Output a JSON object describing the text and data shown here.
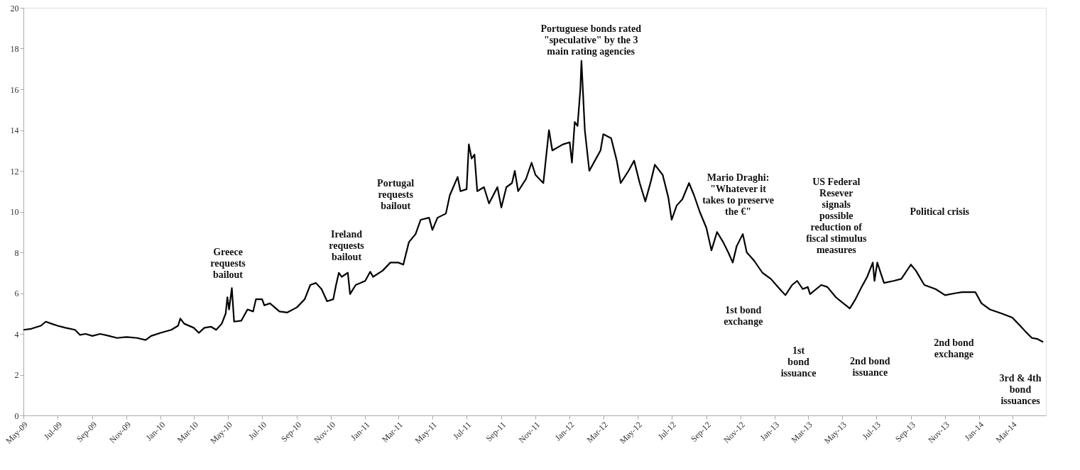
{
  "chart_data": {
    "type": "line",
    "x": [
      "2009-05-01",
      "2009-05-15",
      "2009-06-01",
      "2009-06-10",
      "2009-06-20",
      "2009-07-01",
      "2009-07-15",
      "2009-08-01",
      "2009-08-10",
      "2009-08-20",
      "2009-09-01",
      "2009-09-15",
      "2009-10-01",
      "2009-10-15",
      "2009-11-01",
      "2009-11-20",
      "2009-12-05",
      "2009-12-15",
      "2010-01-01",
      "2010-01-20",
      "2010-02-01",
      "2010-02-05",
      "2010-02-12",
      "2010-03-01",
      "2010-03-10",
      "2010-03-20",
      "2010-04-01",
      "2010-04-10",
      "2010-04-20",
      "2010-04-27",
      "2010-04-30",
      "2010-05-03",
      "2010-05-08",
      "2010-05-12",
      "2010-05-25",
      "2010-06-05",
      "2010-06-15",
      "2010-06-20",
      "2010-07-01",
      "2010-07-05",
      "2010-07-15",
      "2010-08-01",
      "2010-08-15",
      "2010-09-01",
      "2010-09-15",
      "2010-09-25",
      "2010-10-05",
      "2010-10-15",
      "2010-10-25",
      "2010-11-05",
      "2010-11-10",
      "2010-11-15",
      "2010-11-20",
      "2010-12-01",
      "2010-12-05",
      "2010-12-15",
      "2011-01-01",
      "2011-01-10",
      "2011-01-15",
      "2011-02-01",
      "2011-02-15",
      "2011-03-01",
      "2011-03-10",
      "2011-03-20",
      "2011-04-01",
      "2011-04-10",
      "2011-04-25",
      "2011-05-01",
      "2011-05-10",
      "2011-05-25",
      "2011-06-01",
      "2011-06-15",
      "2011-06-20",
      "2011-07-01",
      "2011-07-05",
      "2011-07-10",
      "2011-07-15",
      "2011-07-20",
      "2011-08-01",
      "2011-08-10",
      "2011-08-25",
      "2011-09-01",
      "2011-09-10",
      "2011-09-20",
      "2011-09-25",
      "2011-10-01",
      "2011-10-15",
      "2011-10-25",
      "2011-11-01",
      "2011-11-15",
      "2011-11-25",
      "2011-12-01",
      "2011-12-20",
      "2012-01-01",
      "2012-01-05",
      "2012-01-10",
      "2012-01-15",
      "2012-01-20",
      "2012-01-22",
      "2012-01-28",
      "2012-02-05",
      "2012-02-15",
      "2012-02-25",
      "2012-03-01",
      "2012-03-15",
      "2012-03-25",
      "2012-04-01",
      "2012-04-15",
      "2012-04-25",
      "2012-05-05",
      "2012-05-15",
      "2012-05-25",
      "2012-06-01",
      "2012-06-15",
      "2012-06-25",
      "2012-07-01",
      "2012-07-10",
      "2012-07-20",
      "2012-08-01",
      "2012-08-10",
      "2012-08-20",
      "2012-09-01",
      "2012-09-10",
      "2012-09-20",
      "2012-10-01",
      "2012-10-10",
      "2012-10-18",
      "2012-10-25",
      "2012-11-05",
      "2012-11-12",
      "2012-11-25",
      "2012-12-10",
      "2012-12-25",
      "2013-01-10",
      "2013-01-20",
      "2013-02-01",
      "2013-02-10",
      "2013-02-20",
      "2013-03-01",
      "2013-03-05",
      "2013-03-25",
      "2013-04-05",
      "2013-04-20",
      "2013-05-01",
      "2013-05-15",
      "2013-05-25",
      "2013-06-05",
      "2013-06-15",
      "2013-06-25",
      "2013-06-28",
      "2013-07-03",
      "2013-07-15",
      "2013-08-01",
      "2013-08-15",
      "2013-09-01",
      "2013-09-10",
      "2013-09-25",
      "2013-10-15",
      "2013-11-01",
      "2013-11-20",
      "2013-12-01",
      "2013-12-25",
      "2014-01-05",
      "2014-01-20",
      "2014-02-10",
      "2014-03-01",
      "2014-03-15",
      "2014-03-25",
      "2014-04-05",
      "2014-04-15",
      "2014-04-25"
    ],
    "series": [
      {
        "color": "#000000",
        "values": [
          4.2,
          4.25,
          4.4,
          4.6,
          4.5,
          4.4,
          4.3,
          4.2,
          3.95,
          4.0,
          3.9,
          4.0,
          3.9,
          3.8,
          3.85,
          3.8,
          3.7,
          3.9,
          4.05,
          4.2,
          4.4,
          4.75,
          4.5,
          4.3,
          4.05,
          4.3,
          4.35,
          4.2,
          4.5,
          5.0,
          5.8,
          5.2,
          6.25,
          4.6,
          4.65,
          5.2,
          5.1,
          5.7,
          5.7,
          5.4,
          5.5,
          5.1,
          5.05,
          5.3,
          5.7,
          6.4,
          6.5,
          6.2,
          5.6,
          5.7,
          6.4,
          7.0,
          6.8,
          7.0,
          5.95,
          6.4,
          6.6,
          7.05,
          6.8,
          7.1,
          7.5,
          7.5,
          7.4,
          8.5,
          8.9,
          9.6,
          9.7,
          9.1,
          9.7,
          9.9,
          10.8,
          11.7,
          11.0,
          11.1,
          13.3,
          12.6,
          12.8,
          11.0,
          11.2,
          10.4,
          11.2,
          10.2,
          11.2,
          11.4,
          12.0,
          11.0,
          11.6,
          12.4,
          11.8,
          11.4,
          14.0,
          13.0,
          13.3,
          13.4,
          12.4,
          14.4,
          14.2,
          16.0,
          17.4,
          14.0,
          12.0,
          12.5,
          13.0,
          13.8,
          13.6,
          12.5,
          11.4,
          12.0,
          12.5,
          11.4,
          10.5,
          11.5,
          12.3,
          11.8,
          10.7,
          9.6,
          10.3,
          10.6,
          11.4,
          10.8,
          10.0,
          9.2,
          8.1,
          9.0,
          8.5,
          8.0,
          7.5,
          8.3,
          8.9,
          8.0,
          7.6,
          7.0,
          6.7,
          6.2,
          5.9,
          6.4,
          6.6,
          6.2,
          6.3,
          5.95,
          6.4,
          6.3,
          5.8,
          5.55,
          5.25,
          5.7,
          6.3,
          6.8,
          7.5,
          6.6,
          7.5,
          6.5,
          6.6,
          6.7,
          7.4,
          7.1,
          6.4,
          6.2,
          5.9,
          6.0,
          6.05,
          6.05,
          5.5,
          5.2,
          5.0,
          4.8,
          4.4,
          4.1,
          3.8,
          3.75,
          3.6
        ]
      }
    ],
    "xlim": [
      "2009-05-01",
      "2014-04-30"
    ],
    "xticks": [
      {
        "value": "2009-05-01",
        "label": "May-09"
      },
      {
        "value": "2009-07-01",
        "label": "Jul-09"
      },
      {
        "value": "2009-09-01",
        "label": "Sep-09"
      },
      {
        "value": "2009-11-01",
        "label": "Nov-09"
      },
      {
        "value": "2010-01-01",
        "label": "Jan-10"
      },
      {
        "value": "2010-03-01",
        "label": "Mar-10"
      },
      {
        "value": "2010-05-01",
        "label": "May-10"
      },
      {
        "value": "2010-07-01",
        "label": "Jul-10"
      },
      {
        "value": "2010-09-01",
        "label": "Sep-10"
      },
      {
        "value": "2010-11-01",
        "label": "Nov-10"
      },
      {
        "value": "2011-01-01",
        "label": "Jan-11"
      },
      {
        "value": "2011-03-01",
        "label": "Mar-11"
      },
      {
        "value": "2011-05-01",
        "label": "May-11"
      },
      {
        "value": "2011-07-01",
        "label": "Jul-11"
      },
      {
        "value": "2011-09-01",
        "label": "Sep-11"
      },
      {
        "value": "2011-11-01",
        "label": "Nov-11"
      },
      {
        "value": "2012-01-01",
        "label": "Jan-12"
      },
      {
        "value": "2012-03-01",
        "label": "Mar-12"
      },
      {
        "value": "2012-05-01",
        "label": "May-12"
      },
      {
        "value": "2012-07-01",
        "label": "Jul-12"
      },
      {
        "value": "2012-09-01",
        "label": "Sep-12"
      },
      {
        "value": "2012-11-01",
        "label": "Nov-12"
      },
      {
        "value": "2013-01-01",
        "label": "Jan-13"
      },
      {
        "value": "2013-03-01",
        "label": "Mar-13"
      },
      {
        "value": "2013-05-01",
        "label": "May-13"
      },
      {
        "value": "2013-07-01",
        "label": "Jul-13"
      },
      {
        "value": "2013-09-01",
        "label": "Sep-13"
      },
      {
        "value": "2013-11-01",
        "label": "Nov-13"
      },
      {
        "value": "2014-01-01",
        "label": "Jan-14"
      },
      {
        "value": "2014-03-01",
        "label": "Mar-14"
      }
    ],
    "ylim": [
      0,
      20
    ],
    "yticks": [
      0,
      2,
      4,
      6,
      8,
      10,
      12,
      14,
      16,
      18,
      20
    ],
    "grid": false,
    "annotations": [
      "Greece\nrequests\nbailout",
      "Ireland\nrequests\nbailout",
      "Portugal\nrequests\nbailout",
      "Portuguese bonds rated\n\"speculative\" by the 3\nmain rating agencies",
      "Mario Draghi:\n\"Whatever it\ntakes to preserve\nthe €\"",
      "US Federal\nResever\nsignals\npossible\nreduction of\nfiscal stimulus\nmeasures",
      "Political crisis",
      "1st bond\nexchange",
      "1st\nbond\nissuance",
      "2nd bond\nissuance",
      "2nd bond\nexchange",
      "3rd & 4th\nbond\nissuances"
    ]
  }
}
